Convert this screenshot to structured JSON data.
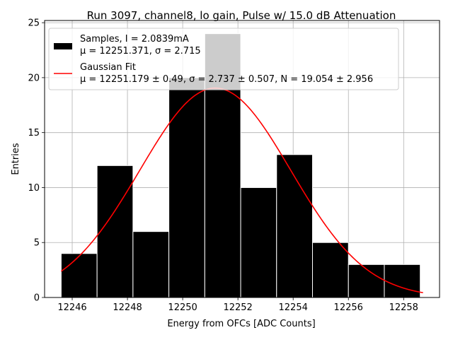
{
  "chart_data": {
    "type": "bar",
    "title": "Run 3097, channel8, lo gain, Pulse w/ 15.0 dB Attenuation",
    "xlabel": "Energy from OFCs [ADC Counts]",
    "ylabel": "Entries",
    "xlim": [
      12245.0,
      12259.3
    ],
    "ylim": [
      0,
      25.2
    ],
    "grid": true,
    "legend_position": "top-left",
    "xticks": [
      "12246",
      "12248",
      "12250",
      "12252",
      "12254",
      "12256",
      "12258"
    ],
    "yticks": [
      "0",
      "5",
      "10",
      "15",
      "20",
      "25"
    ],
    "series": [
      {
        "name": "Samples, I = 2.0839mA",
        "stats": "μ = 12251.371, σ = 2.715",
        "kind": "histogram",
        "color": "#000000",
        "bins": [
          {
            "x0": 12245.6,
            "x1": 12246.9,
            "count": 4
          },
          {
            "x0": 12246.9,
            "x1": 12248.2,
            "count": 12
          },
          {
            "x0": 12248.2,
            "x1": 12249.5,
            "count": 6
          },
          {
            "x0": 12249.5,
            "x1": 12250.8,
            "count": 20
          },
          {
            "x0": 12250.8,
            "x1": 12252.1,
            "count": 24
          },
          {
            "x0": 12252.1,
            "x1": 12253.4,
            "count": 10
          },
          {
            "x0": 12253.4,
            "x1": 12254.7,
            "count": 13
          },
          {
            "x0": 12254.7,
            "x1": 12256.0,
            "count": 5
          },
          {
            "x0": 12256.0,
            "x1": 12257.3,
            "count": 3
          },
          {
            "x0": 12257.3,
            "x1": 12258.6,
            "count": 3
          }
        ]
      },
      {
        "name": "Gaussian Fit",
        "stats": "μ = 12251.179 ± 0.49, σ = 2.737 ± 0.507, N = 19.054 ± 2.956",
        "kind": "curve",
        "color": "#ff0000",
        "mu": 12251.179,
        "sigma": 2.737,
        "N": 19.054,
        "x_range": [
          12245.6,
          12258.7
        ]
      }
    ]
  }
}
